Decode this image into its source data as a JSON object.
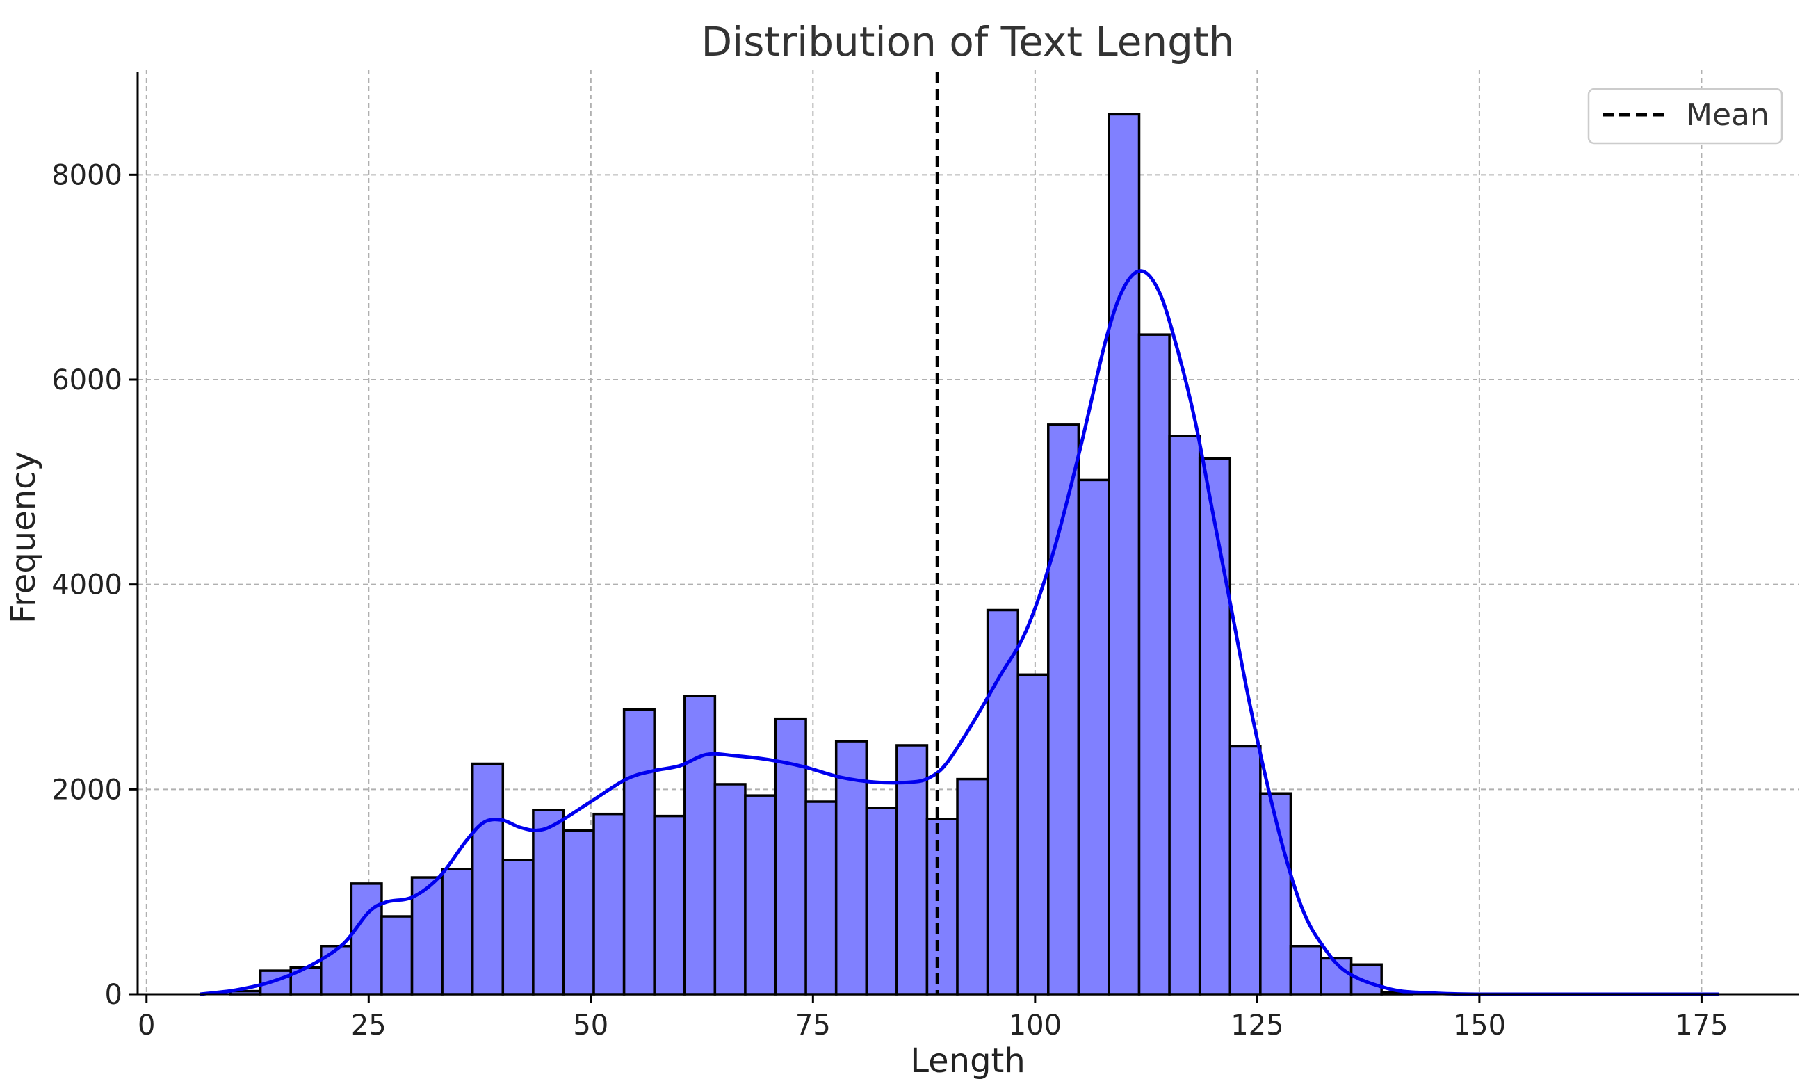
{
  "chart_data": {
    "type": "bar",
    "title": "Distribution of Text Length",
    "xlabel": "Length",
    "ylabel": "Frequency",
    "xlim": [
      -1,
      186
    ],
    "ylim": [
      0,
      9000
    ],
    "x_ticks": [
      0,
      25,
      50,
      75,
      100,
      125,
      150,
      175
    ],
    "y_ticks": [
      0,
      2000,
      4000,
      6000,
      8000
    ],
    "grid": true,
    "legend": {
      "placement": "top-right",
      "entries": [
        {
          "label": "Mean",
          "style": "dashed",
          "color": "#000000"
        }
      ]
    },
    "bar_color": "#8080ff",
    "bar_edge_color": "#000000",
    "kde_color": "#0000ee",
    "mean": 89,
    "bins": {
      "start": 6,
      "width": 3.41,
      "counts": [
        0,
        30,
        230,
        260,
        470,
        1080,
        760,
        1140,
        1220,
        2250,
        1310,
        1800,
        1600,
        1760,
        2780,
        1740,
        2910,
        2050,
        1940,
        2690,
        1880,
        2470,
        1820,
        2430,
        1710,
        2100,
        3750,
        3120,
        5560,
        5020,
        8590,
        6440,
        5450,
        5230,
        2420,
        1960,
        470,
        350,
        290,
        20,
        0,
        0,
        0,
        0,
        0,
        0,
        0,
        0,
        0,
        0
      ]
    },
    "kde": {
      "x": [
        6,
        10,
        14,
        18,
        22,
        25,
        27,
        30,
        33,
        36,
        38,
        40,
        42,
        44,
        46,
        50,
        54,
        57,
        60,
        63,
        66,
        70,
        74,
        78,
        82,
        86,
        88,
        90,
        93,
        96,
        99,
        102,
        105,
        108,
        110,
        112,
        114,
        116,
        118,
        120,
        122,
        124,
        126,
        128,
        130,
        132,
        135,
        140,
        145,
        150,
        160,
        177
      ],
      "y": [
        0,
        40,
        120,
        260,
        480,
        800,
        900,
        950,
        1150,
        1500,
        1680,
        1700,
        1630,
        1600,
        1660,
        1880,
        2100,
        2180,
        2230,
        2340,
        2330,
        2290,
        2220,
        2120,
        2070,
        2070,
        2110,
        2250,
        2650,
        3100,
        3550,
        4300,
        5300,
        6400,
        6900,
        7060,
        6850,
        6300,
        5600,
        4700,
        3800,
        2900,
        2100,
        1400,
        850,
        520,
        220,
        50,
        10,
        0,
        0,
        0
      ]
    }
  }
}
